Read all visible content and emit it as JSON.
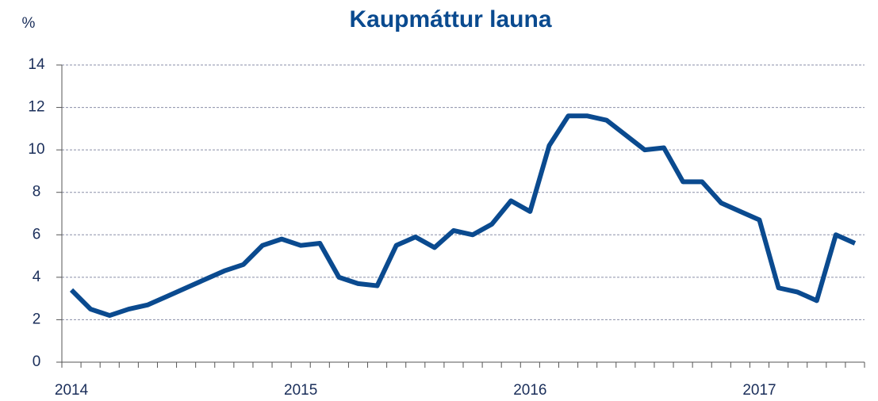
{
  "chart_data": {
    "type": "line",
    "title": "Kaupmáttur launa",
    "y_label": "%",
    "categories": [
      "2014",
      null,
      null,
      null,
      null,
      null,
      null,
      null,
      null,
      null,
      null,
      null,
      "2015",
      null,
      null,
      null,
      null,
      null,
      null,
      null,
      null,
      null,
      null,
      null,
      "2016",
      null,
      null,
      null,
      null,
      null,
      null,
      null,
      null,
      null,
      null,
      null,
      "2017",
      null,
      null,
      null,
      null,
      null
    ],
    "series": [
      {
        "name": "Kaupmáttur launa",
        "color": "#0a4a8f",
        "values": [
          3.4,
          2.5,
          2.2,
          2.5,
          2.7,
          3.1,
          3.5,
          3.9,
          4.3,
          4.6,
          5.5,
          5.8,
          5.5,
          5.6,
          4.0,
          3.7,
          3.6,
          5.5,
          5.9,
          5.4,
          6.2,
          6.0,
          6.5,
          7.6,
          7.1,
          10.2,
          11.6,
          11.6,
          11.4,
          10.7,
          10.0,
          10.1,
          8.5,
          8.5,
          7.5,
          7.1,
          6.7,
          3.5,
          3.3,
          2.9,
          6.0,
          5.6
        ]
      }
    ],
    "ylim": [
      0,
      14
    ],
    "yticks": [
      0,
      2,
      4,
      6,
      8,
      10,
      12,
      14
    ],
    "grid": true
  }
}
